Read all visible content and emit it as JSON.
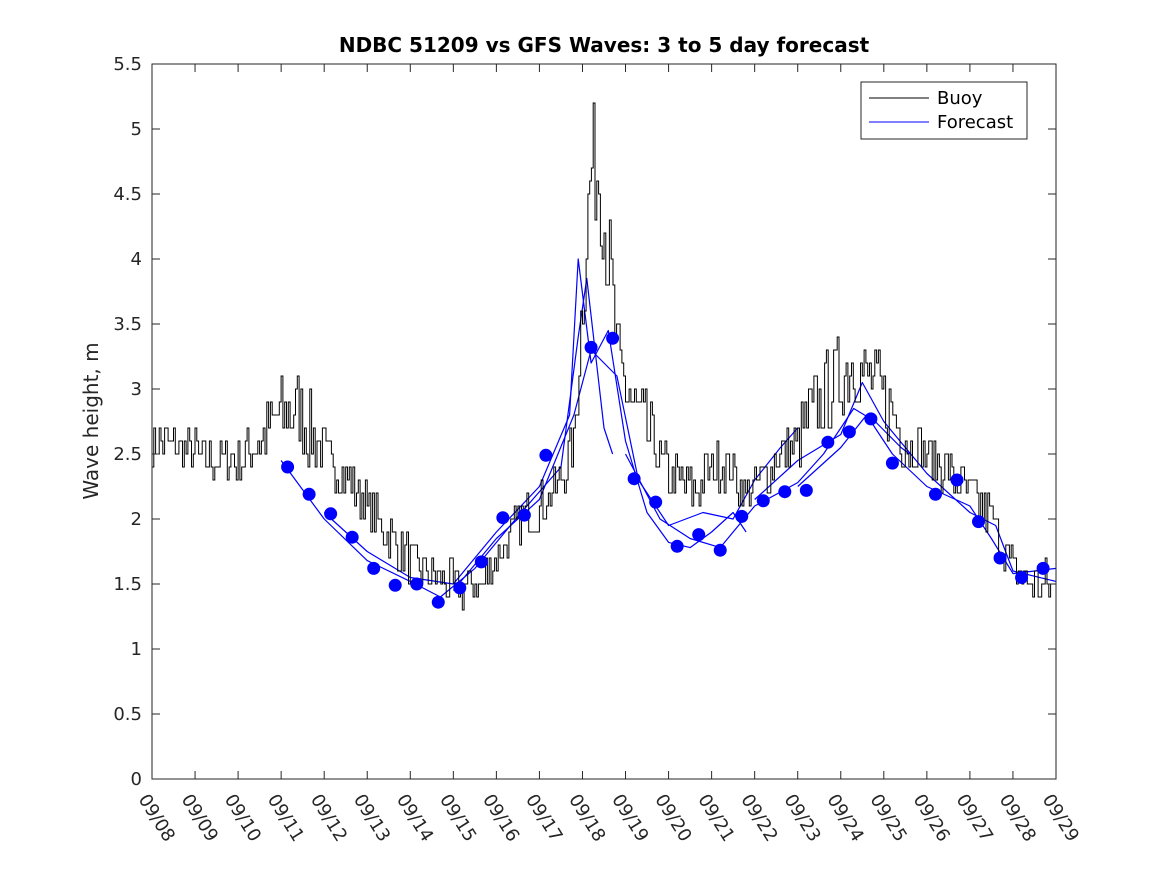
{
  "chart_data": {
    "type": "line",
    "title": "NDBC 51209 vs GFS Waves: 3 to 5 day forecast",
    "xlabel": "",
    "ylabel": "Wave height, m",
    "ylim": [
      0,
      5.5
    ],
    "xlim_days": [
      0,
      21
    ],
    "yticks": [
      "0",
      "0.5",
      "1",
      "1.5",
      "2",
      "2.5",
      "3",
      "3.5",
      "4",
      "4.5",
      "5",
      "5.5"
    ],
    "xticks": [
      "09/08",
      "09/09",
      "09/10",
      "09/11",
      "09/12",
      "09/13",
      "09/14",
      "09/15",
      "09/16",
      "09/17",
      "09/18",
      "09/19",
      "09/20",
      "09/21",
      "09/22",
      "09/23",
      "09/24",
      "09/25",
      "09/26",
      "09/27",
      "09/28",
      "09/29"
    ],
    "legend": {
      "placement": "top-right",
      "buoy_label": "Buoy",
      "forecast_label": "Forecast",
      "buoy_color": "#000000",
      "forecast_color": "#0000ff"
    },
    "buoy_anchors": [
      {
        "x": 0.0,
        "y": 2.6
      },
      {
        "x": 0.5,
        "y": 2.55
      },
      {
        "x": 1.0,
        "y": 2.5
      },
      {
        "x": 1.5,
        "y": 2.45
      },
      {
        "x": 2.0,
        "y": 2.45
      },
      {
        "x": 2.5,
        "y": 2.6
      },
      {
        "x": 3.0,
        "y": 2.8
      },
      {
        "x": 3.4,
        "y": 2.85
      },
      {
        "x": 3.8,
        "y": 2.6
      },
      {
        "x": 4.3,
        "y": 2.4
      },
      {
        "x": 4.8,
        "y": 2.2
      },
      {
        "x": 5.3,
        "y": 1.95
      },
      {
        "x": 5.8,
        "y": 1.75
      },
      {
        "x": 6.3,
        "y": 1.6
      },
      {
        "x": 6.8,
        "y": 1.52
      },
      {
        "x": 7.2,
        "y": 1.45
      },
      {
        "x": 7.6,
        "y": 1.48
      },
      {
        "x": 8.0,
        "y": 1.7
      },
      {
        "x": 8.5,
        "y": 1.95
      },
      {
        "x": 9.0,
        "y": 2.1
      },
      {
        "x": 9.5,
        "y": 2.3
      },
      {
        "x": 9.8,
        "y": 2.6
      },
      {
        "x": 10.0,
        "y": 3.8
      },
      {
        "x": 10.2,
        "y": 4.75
      },
      {
        "x": 10.4,
        "y": 4.6
      },
      {
        "x": 10.6,
        "y": 4.0
      },
      {
        "x": 10.8,
        "y": 3.2
      },
      {
        "x": 11.2,
        "y": 2.85
      },
      {
        "x": 11.6,
        "y": 2.6
      },
      {
        "x": 12.0,
        "y": 2.35
      },
      {
        "x": 12.6,
        "y": 2.2
      },
      {
        "x": 13.0,
        "y": 2.4
      },
      {
        "x": 13.4,
        "y": 2.4
      },
      {
        "x": 13.8,
        "y": 2.2
      },
      {
        "x": 14.2,
        "y": 2.3
      },
      {
        "x": 14.6,
        "y": 2.5
      },
      {
        "x": 15.0,
        "y": 2.6
      },
      {
        "x": 15.5,
        "y": 2.9
      },
      {
        "x": 16.0,
        "y": 3.1
      },
      {
        "x": 16.3,
        "y": 3.2
      },
      {
        "x": 16.8,
        "y": 3.0
      },
      {
        "x": 17.2,
        "y": 2.8
      },
      {
        "x": 17.6,
        "y": 2.6
      },
      {
        "x": 18.0,
        "y": 2.5
      },
      {
        "x": 18.5,
        "y": 2.35
      },
      {
        "x": 19.0,
        "y": 2.2
      },
      {
        "x": 19.5,
        "y": 2.0
      },
      {
        "x": 20.0,
        "y": 1.6
      },
      {
        "x": 20.5,
        "y": 1.5
      },
      {
        "x": 21.0,
        "y": 1.5
      }
    ],
    "forecast_points": [
      {
        "x": 3.15,
        "y": 2.4
      },
      {
        "x": 3.65,
        "y": 2.19
      },
      {
        "x": 4.15,
        "y": 2.04
      },
      {
        "x": 4.65,
        "y": 1.86
      },
      {
        "x": 5.15,
        "y": 1.62
      },
      {
        "x": 5.65,
        "y": 1.49
      },
      {
        "x": 6.15,
        "y": 1.5
      },
      {
        "x": 6.65,
        "y": 1.36
      },
      {
        "x": 7.15,
        "y": 1.47
      },
      {
        "x": 7.65,
        "y": 1.67
      },
      {
        "x": 8.15,
        "y": 2.01
      },
      {
        "x": 8.65,
        "y": 2.03
      },
      {
        "x": 9.15,
        "y": 2.49
      },
      {
        "x": 10.2,
        "y": 3.32
      },
      {
        "x": 10.7,
        "y": 3.39
      },
      {
        "x": 11.2,
        "y": 2.31
      },
      {
        "x": 11.7,
        "y": 2.13
      },
      {
        "x": 12.2,
        "y": 1.79
      },
      {
        "x": 12.7,
        "y": 1.88
      },
      {
        "x": 13.2,
        "y": 1.76
      },
      {
        "x": 13.7,
        "y": 2.02
      },
      {
        "x": 14.2,
        "y": 2.14
      },
      {
        "x": 14.7,
        "y": 2.21
      },
      {
        "x": 15.2,
        "y": 2.22
      },
      {
        "x": 15.7,
        "y": 2.59
      },
      {
        "x": 16.2,
        "y": 2.67
      },
      {
        "x": 16.7,
        "y": 2.77
      },
      {
        "x": 17.2,
        "y": 2.43
      },
      {
        "x": 18.2,
        "y": 2.19
      },
      {
        "x": 18.7,
        "y": 2.3
      },
      {
        "x": 19.2,
        "y": 1.98
      },
      {
        "x": 19.7,
        "y": 1.7
      },
      {
        "x": 20.2,
        "y": 1.55
      },
      {
        "x": 20.7,
        "y": 1.62
      }
    ],
    "forecast_runs": [
      [
        {
          "x": 3.0,
          "y": 2.45
        },
        {
          "x": 4.0,
          "y": 2.0
        },
        {
          "x": 5.0,
          "y": 1.68
        },
        {
          "x": 6.0,
          "y": 1.52
        },
        {
          "x": 6.7,
          "y": 1.4
        },
        {
          "x": 7.5,
          "y": 1.62
        },
        {
          "x": 8.5,
          "y": 2.02
        },
        {
          "x": 9.5,
          "y": 2.4
        },
        {
          "x": 9.9,
          "y": 3.4
        },
        {
          "x": 10.1,
          "y": 3.85
        },
        {
          "x": 10.5,
          "y": 2.7
        },
        {
          "x": 10.7,
          "y": 2.5
        }
      ],
      [
        {
          "x": 4.0,
          "y": 2.05
        },
        {
          "x": 5.0,
          "y": 1.75
        },
        {
          "x": 6.0,
          "y": 1.55
        },
        {
          "x": 7.0,
          "y": 1.5
        },
        {
          "x": 8.0,
          "y": 1.9
        },
        {
          "x": 9.0,
          "y": 2.25
        },
        {
          "x": 9.7,
          "y": 2.8
        },
        {
          "x": 9.9,
          "y": 4.0
        },
        {
          "x": 10.2,
          "y": 3.2
        },
        {
          "x": 10.6,
          "y": 3.45
        },
        {
          "x": 11.0,
          "y": 2.6
        },
        {
          "x": 11.5,
          "y": 2.05
        },
        {
          "x": 12.0,
          "y": 1.82
        },
        {
          "x": 12.5,
          "y": 1.78
        },
        {
          "x": 13.0,
          "y": 1.9
        },
        {
          "x": 13.5,
          "y": 2.05
        },
        {
          "x": 13.8,
          "y": 1.9
        }
      ],
      [
        {
          "x": 7.0,
          "y": 1.45
        },
        {
          "x": 8.0,
          "y": 1.85
        },
        {
          "x": 9.0,
          "y": 2.15
        },
        {
          "x": 9.8,
          "y": 2.8
        },
        {
          "x": 10.2,
          "y": 3.3
        },
        {
          "x": 10.8,
          "y": 3.1
        },
        {
          "x": 11.3,
          "y": 2.3
        },
        {
          "x": 12.0,
          "y": 1.95
        },
        {
          "x": 12.8,
          "y": 2.05
        },
        {
          "x": 13.5,
          "y": 2.0
        },
        {
          "x": 14.0,
          "y": 2.3
        },
        {
          "x": 14.6,
          "y": 2.55
        },
        {
          "x": 15.0,
          "y": 2.7
        }
      ],
      [
        {
          "x": 11.0,
          "y": 2.5
        },
        {
          "x": 11.8,
          "y": 2.0
        },
        {
          "x": 12.5,
          "y": 1.85
        },
        {
          "x": 13.2,
          "y": 1.78
        },
        {
          "x": 14.0,
          "y": 2.1
        },
        {
          "x": 15.0,
          "y": 2.28
        },
        {
          "x": 15.6,
          "y": 2.5
        },
        {
          "x": 16.3,
          "y": 2.85
        },
        {
          "x": 16.8,
          "y": 2.75
        },
        {
          "x": 17.4,
          "y": 2.55
        },
        {
          "x": 17.6,
          "y": 2.5
        }
      ],
      [
        {
          "x": 14.0,
          "y": 2.15
        },
        {
          "x": 15.0,
          "y": 2.45
        },
        {
          "x": 16.0,
          "y": 2.65
        },
        {
          "x": 16.5,
          "y": 3.05
        },
        {
          "x": 17.0,
          "y": 2.75
        },
        {
          "x": 18.0,
          "y": 2.35
        },
        {
          "x": 19.0,
          "y": 2.05
        },
        {
          "x": 19.6,
          "y": 1.95
        },
        {
          "x": 20.0,
          "y": 1.6
        },
        {
          "x": 21.0,
          "y": 1.52
        }
      ],
      [
        {
          "x": 15.0,
          "y": 2.25
        },
        {
          "x": 16.0,
          "y": 2.55
        },
        {
          "x": 16.6,
          "y": 2.8
        },
        {
          "x": 17.2,
          "y": 2.5
        },
        {
          "x": 18.0,
          "y": 2.25
        },
        {
          "x": 19.0,
          "y": 2.1
        },
        {
          "x": 19.5,
          "y": 1.85
        },
        {
          "x": 20.0,
          "y": 1.58
        },
        {
          "x": 21.0,
          "y": 1.62
        }
      ]
    ]
  }
}
